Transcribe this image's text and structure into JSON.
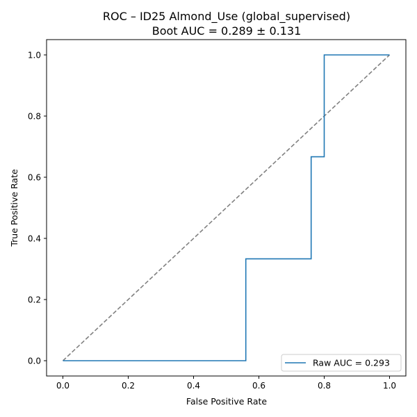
{
  "chart_data": {
    "type": "line",
    "title": "ROC – ID25 Almond_Use (global_supervised)",
    "subtitle": "Boot AUC = 0.289 ± 0.131",
    "xlabel": "False Positive Rate",
    "ylabel": "True Positive Rate",
    "xlim": [
      -0.05,
      1.05
    ],
    "ylim": [
      -0.05,
      1.05
    ],
    "xticks": [
      "0.0",
      "0.2",
      "0.4",
      "0.6",
      "0.8",
      "1.0"
    ],
    "yticks": [
      "0.0",
      "0.2",
      "0.4",
      "0.6",
      "0.8",
      "1.0"
    ],
    "grid": false,
    "legend_position": "lower-right",
    "series": [
      {
        "name": "Raw AUC = 0.293",
        "color": "#1f77b4",
        "style": "solid",
        "x": [
          0.0,
          0.56,
          0.56,
          0.76,
          0.76,
          0.8,
          0.8,
          1.0
        ],
        "y": [
          0.0,
          0.0,
          0.333,
          0.333,
          0.667,
          0.667,
          1.0,
          1.0
        ]
      },
      {
        "color": "#808080",
        "style": "dashed",
        "x": [
          0.0,
          1.0
        ],
        "y": [
          0.0,
          1.0
        ]
      }
    ]
  }
}
